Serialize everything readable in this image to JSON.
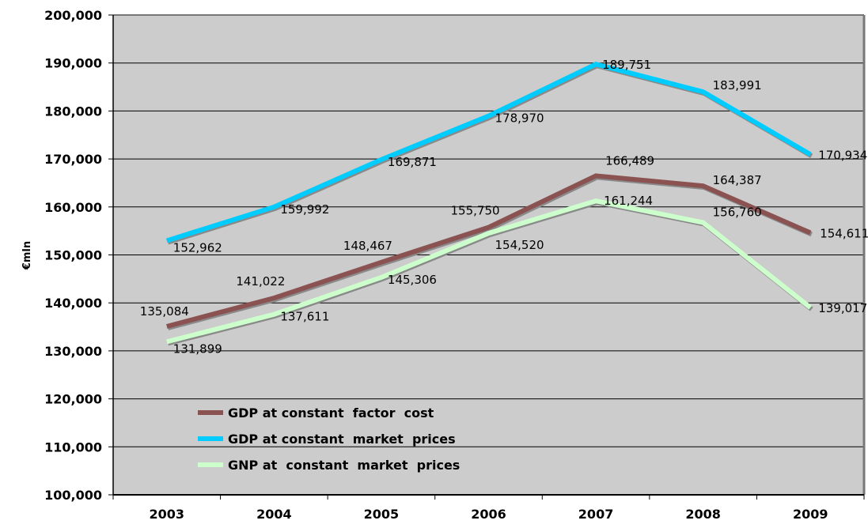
{
  "chart_data": {
    "type": "line",
    "title": "",
    "xlabel": "",
    "ylabel": "€mln",
    "categories": [
      "2003",
      "2004",
      "2005",
      "2006",
      "2007",
      "2008",
      "2009"
    ],
    "ylim": [
      100000,
      200000
    ],
    "ytick_step": 10000,
    "yticks": [
      "100,000",
      "110,000",
      "120,000",
      "130,000",
      "140,000",
      "150,000",
      "160,000",
      "170,000",
      "180,000",
      "190,000",
      "200,000"
    ],
    "grid": true,
    "legend_position": "bottom-left (inside plot)",
    "plot_background": "#cccccc",
    "series": [
      {
        "name": "GDP at constant  factor  cost",
        "color": "#8b5252",
        "values": [
          135084,
          141022,
          148467,
          155750,
          166489,
          164387,
          154611
        ],
        "labels": [
          "135,084",
          "141,022",
          "148,467",
          "155,750",
          "166,489",
          "164,387",
          "154,611"
        ]
      },
      {
        "name": "GDP at constant  market  prices",
        "color": "#00ccff",
        "values": [
          152962,
          159992,
          169871,
          178970,
          189751,
          183991,
          170934
        ],
        "labels": [
          "152,962",
          "159,992",
          "169,871",
          "178,970",
          "189,751",
          "183,991",
          "170,934"
        ]
      },
      {
        "name": "GNP at  constant  market  prices",
        "color": "#ccffcc",
        "values": [
          131899,
          137611,
          145306,
          154520,
          161244,
          156760,
          139017
        ],
        "labels": [
          "131,899",
          "137,611",
          "145,306",
          "154,520",
          "161,244",
          "156,760",
          "139,017"
        ]
      }
    ]
  }
}
